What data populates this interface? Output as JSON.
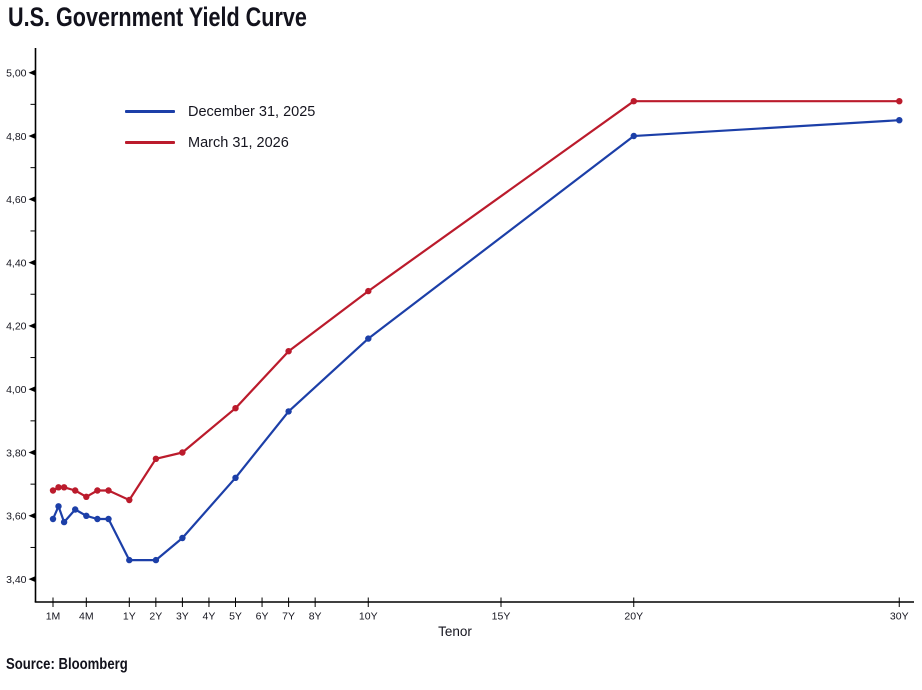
{
  "chart_data": {
    "type": "line",
    "title": "U.S. Government Yield Curve",
    "xlabel": "Tenor",
    "source": "Source: Bloomberg",
    "grid": false,
    "legend_position": "top-left",
    "ylim": [
      3.4,
      5.0
    ],
    "ytick_step": 0.2,
    "y_ticks": [
      {
        "label": "5,00",
        "value": 5.0
      },
      {
        "label": "4,80",
        "value": 4.8
      },
      {
        "label": "4,60",
        "value": 4.6
      },
      {
        "label": "4,40",
        "value": 4.4
      },
      {
        "label": "4,20",
        "value": 4.2
      },
      {
        "label": "4,00",
        "value": 4.0
      },
      {
        "label": "3,80",
        "value": 3.8
      },
      {
        "label": "3,60",
        "value": 3.6
      },
      {
        "label": "3,40",
        "value": 3.4
      }
    ],
    "x_ticks": [
      {
        "label": "1M",
        "months": 1
      },
      {
        "label": "4M",
        "months": 4
      },
      {
        "label": "1Y",
        "months": 12
      },
      {
        "label": "2Y",
        "months": 24
      },
      {
        "label": "3Y",
        "months": 36
      },
      {
        "label": "4Y",
        "months": 48
      },
      {
        "label": "5Y",
        "months": 60
      },
      {
        "label": "6Y",
        "months": 72
      },
      {
        "label": "7Y",
        "months": 84
      },
      {
        "label": "8Y",
        "months": 96
      },
      {
        "label": "10Y",
        "months": 120
      },
      {
        "label": "15Y",
        "months": 180
      },
      {
        "label": "20Y",
        "months": 240
      },
      {
        "label": "30Y",
        "months": 360
      }
    ],
    "series": [
      {
        "name": "December 31, 2025",
        "color": "#1c3fa8",
        "tenors": [
          "1M",
          "1.5M",
          "2M",
          "3M",
          "4M",
          "5M",
          "6M",
          "1Y",
          "2Y",
          "3Y",
          "5Y",
          "7Y",
          "10Y",
          "20Y",
          "30Y"
        ],
        "months": [
          1,
          1.5,
          2,
          3,
          4,
          5,
          6,
          12,
          24,
          36,
          60,
          84,
          120,
          240,
          360
        ],
        "values": [
          3.59,
          3.63,
          3.58,
          3.62,
          3.6,
          3.59,
          3.59,
          3.46,
          3.46,
          3.53,
          3.72,
          3.93,
          4.16,
          4.8,
          4.85
        ]
      },
      {
        "name": "March 31, 2026",
        "color": "#bb1b2c",
        "tenors": [
          "1M",
          "1.5M",
          "2M",
          "3M",
          "4M",
          "5M",
          "6M",
          "1Y",
          "2Y",
          "3Y",
          "5Y",
          "7Y",
          "10Y",
          "20Y",
          "30Y"
        ],
        "months": [
          1,
          1.5,
          2,
          3,
          4,
          5,
          6,
          12,
          24,
          36,
          60,
          84,
          120,
          240,
          360
        ],
        "values": [
          3.68,
          3.69,
          3.69,
          3.68,
          3.66,
          3.68,
          3.68,
          3.65,
          3.78,
          3.8,
          3.94,
          4.12,
          4.31,
          4.91,
          4.91
        ]
      }
    ]
  }
}
